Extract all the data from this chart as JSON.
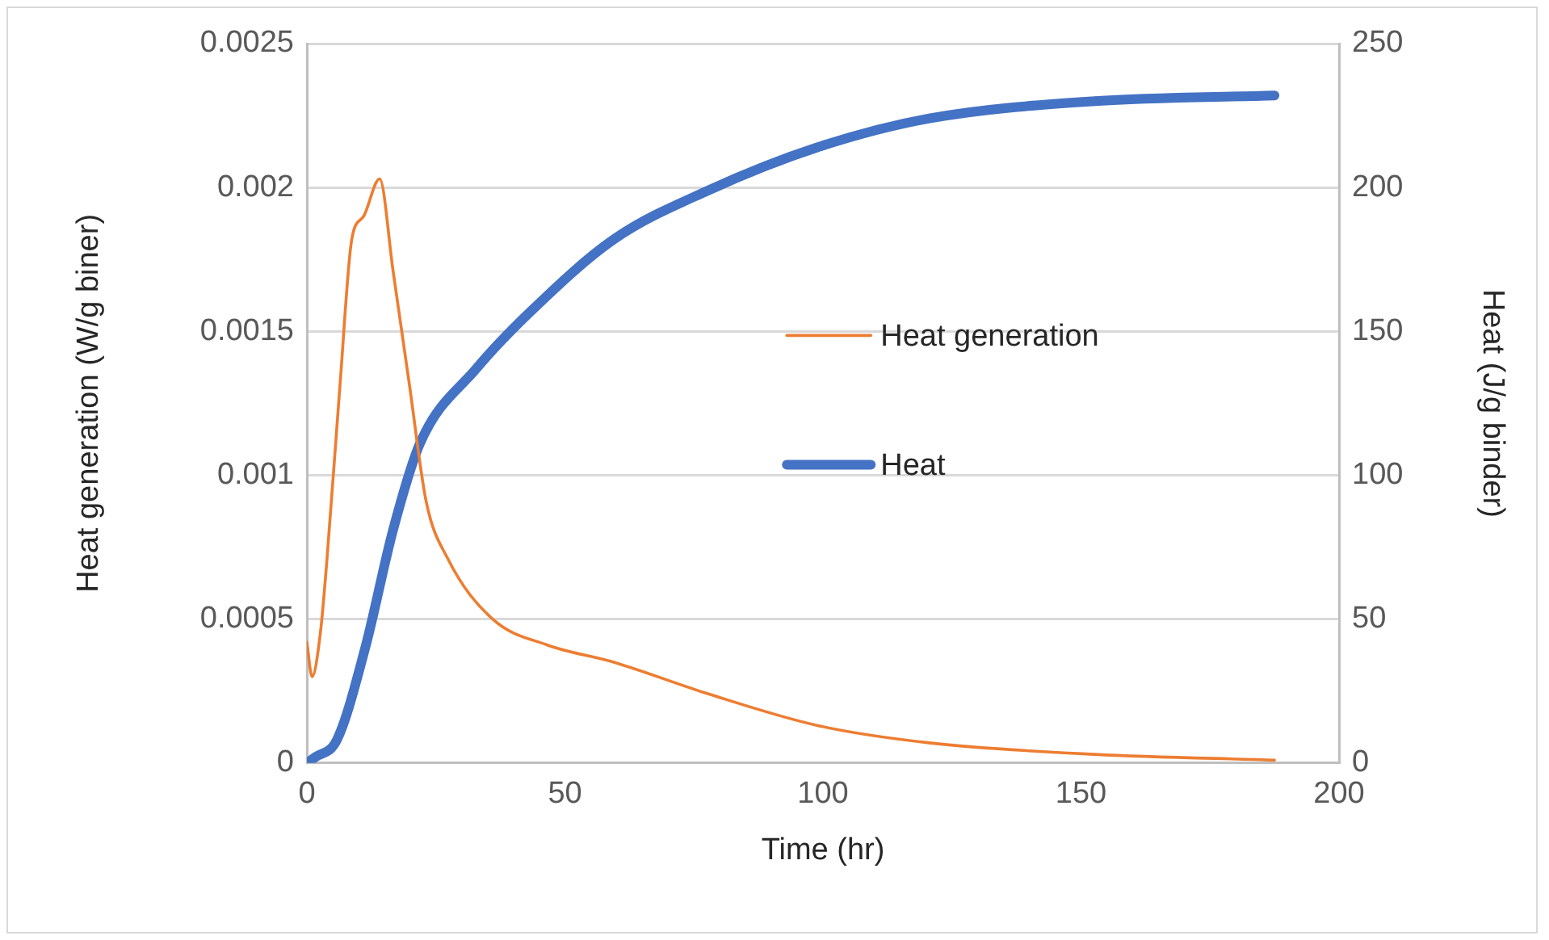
{
  "chart_data": {
    "type": "line",
    "xlabel": "Time (hr)",
    "ylabel": "Heat generation (W/g biner)",
    "y2label": "Heat (J/g binder)",
    "xlim": [
      0,
      200
    ],
    "xticks": [
      0,
      50,
      100,
      150,
      200
    ],
    "ylim": [
      0,
      0.0025
    ],
    "yticks": [
      0,
      0.0005,
      0.001,
      0.0015,
      0.002,
      0.0025
    ],
    "y2lim": [
      0,
      250
    ],
    "y2ticks": [
      0,
      50,
      100,
      150,
      200,
      250
    ],
    "grid": "y",
    "legend": "right",
    "marker": "none",
    "series": [
      {
        "name": "Heat generation",
        "color": "#ed7d31",
        "x": [
          0,
          1,
          2.6,
          3.9,
          6.4,
          8.7,
          11,
          14.1,
          16.7,
          19.9,
          23.1,
          27.3,
          36,
          46.6,
          59.5,
          77.8,
          99,
          120.6,
          152.7,
          187.5
        ],
        "values": [
          0.00042,
          0.0003,
          0.00045,
          0.00071,
          0.00131,
          0.00182,
          0.0019,
          0.00203,
          0.00171,
          0.00131,
          0.00091,
          0.00071,
          0.0005,
          0.00041,
          0.00035,
          0.00024,
          0.00013,
          7e-05,
          3e-05,
          1e-05
        ]
      },
      {
        "name": "Heat",
        "color": "#4472c4",
        "axis": "y2",
        "x": [
          0,
          1.6,
          5.8,
          11.3,
          16.7,
          21.9,
          32.8,
          43.4,
          59.5,
          77.8,
          99,
          120.6,
          152.7,
          187.5
        ],
        "values": [
          0,
          2,
          8,
          40,
          81,
          111,
          137,
          157,
          182,
          199,
          214,
          224,
          230,
          232
        ]
      }
    ]
  }
}
